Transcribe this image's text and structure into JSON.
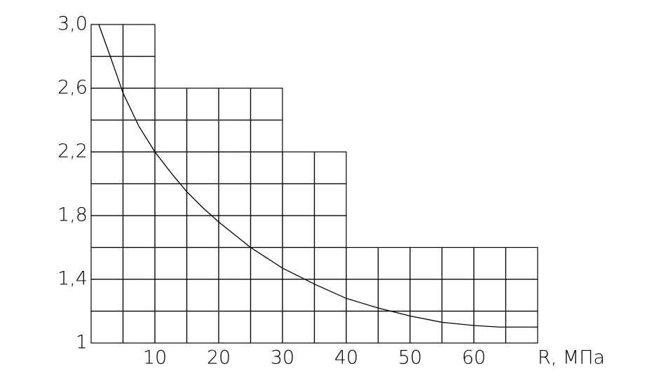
{
  "chart_data": {
    "type": "line",
    "x_label": "R, МПа",
    "x": [
      1.2,
      3,
      5,
      7.5,
      10,
      12.5,
      15,
      17.5,
      20,
      25,
      30,
      35,
      40,
      45,
      50,
      55,
      60,
      64,
      70
    ],
    "series": [
      {
        "color": "#000000",
        "values": [
          3.0,
          2.8,
          2.57,
          2.36,
          2.2,
          2.07,
          1.95,
          1.85,
          1.76,
          1.6,
          1.47,
          1.37,
          1.28,
          1.22,
          1.17,
          1.13,
          1.11,
          1.1,
          1.1
        ]
      }
    ],
    "xlim": [
      0,
      70
    ],
    "ylim": [
      1,
      3.0
    ],
    "xticks": [
      10,
      20,
      30,
      40,
      50,
      60
    ],
    "yticks": [
      1,
      {
        "value": 1.4,
        "label": "1,4"
      },
      {
        "value": 1.8,
        "label": "1,8"
      },
      {
        "value": 2.2,
        "label": "2,2"
      },
      {
        "value": 2.6,
        "label": "2,6"
      },
      {
        "value": 3.0,
        "label": "3,0"
      }
    ],
    "xgrid": [
      0,
      5,
      10,
      15,
      20,
      25,
      30,
      35,
      40,
      45,
      50,
      55,
      60,
      65,
      70
    ],
    "ygrid": [
      1,
      1.2,
      1.4,
      1.6,
      1.8,
      2.0,
      2.2,
      2.4,
      2.6,
      2.8,
      3.0
    ],
    "grid_tops": [
      3.0,
      3.0,
      2.6,
      2.6,
      2.6,
      2.6,
      2.2,
      2.2,
      1.6,
      1.6,
      1.6,
      1.6,
      1.6,
      1.6
    ]
  }
}
